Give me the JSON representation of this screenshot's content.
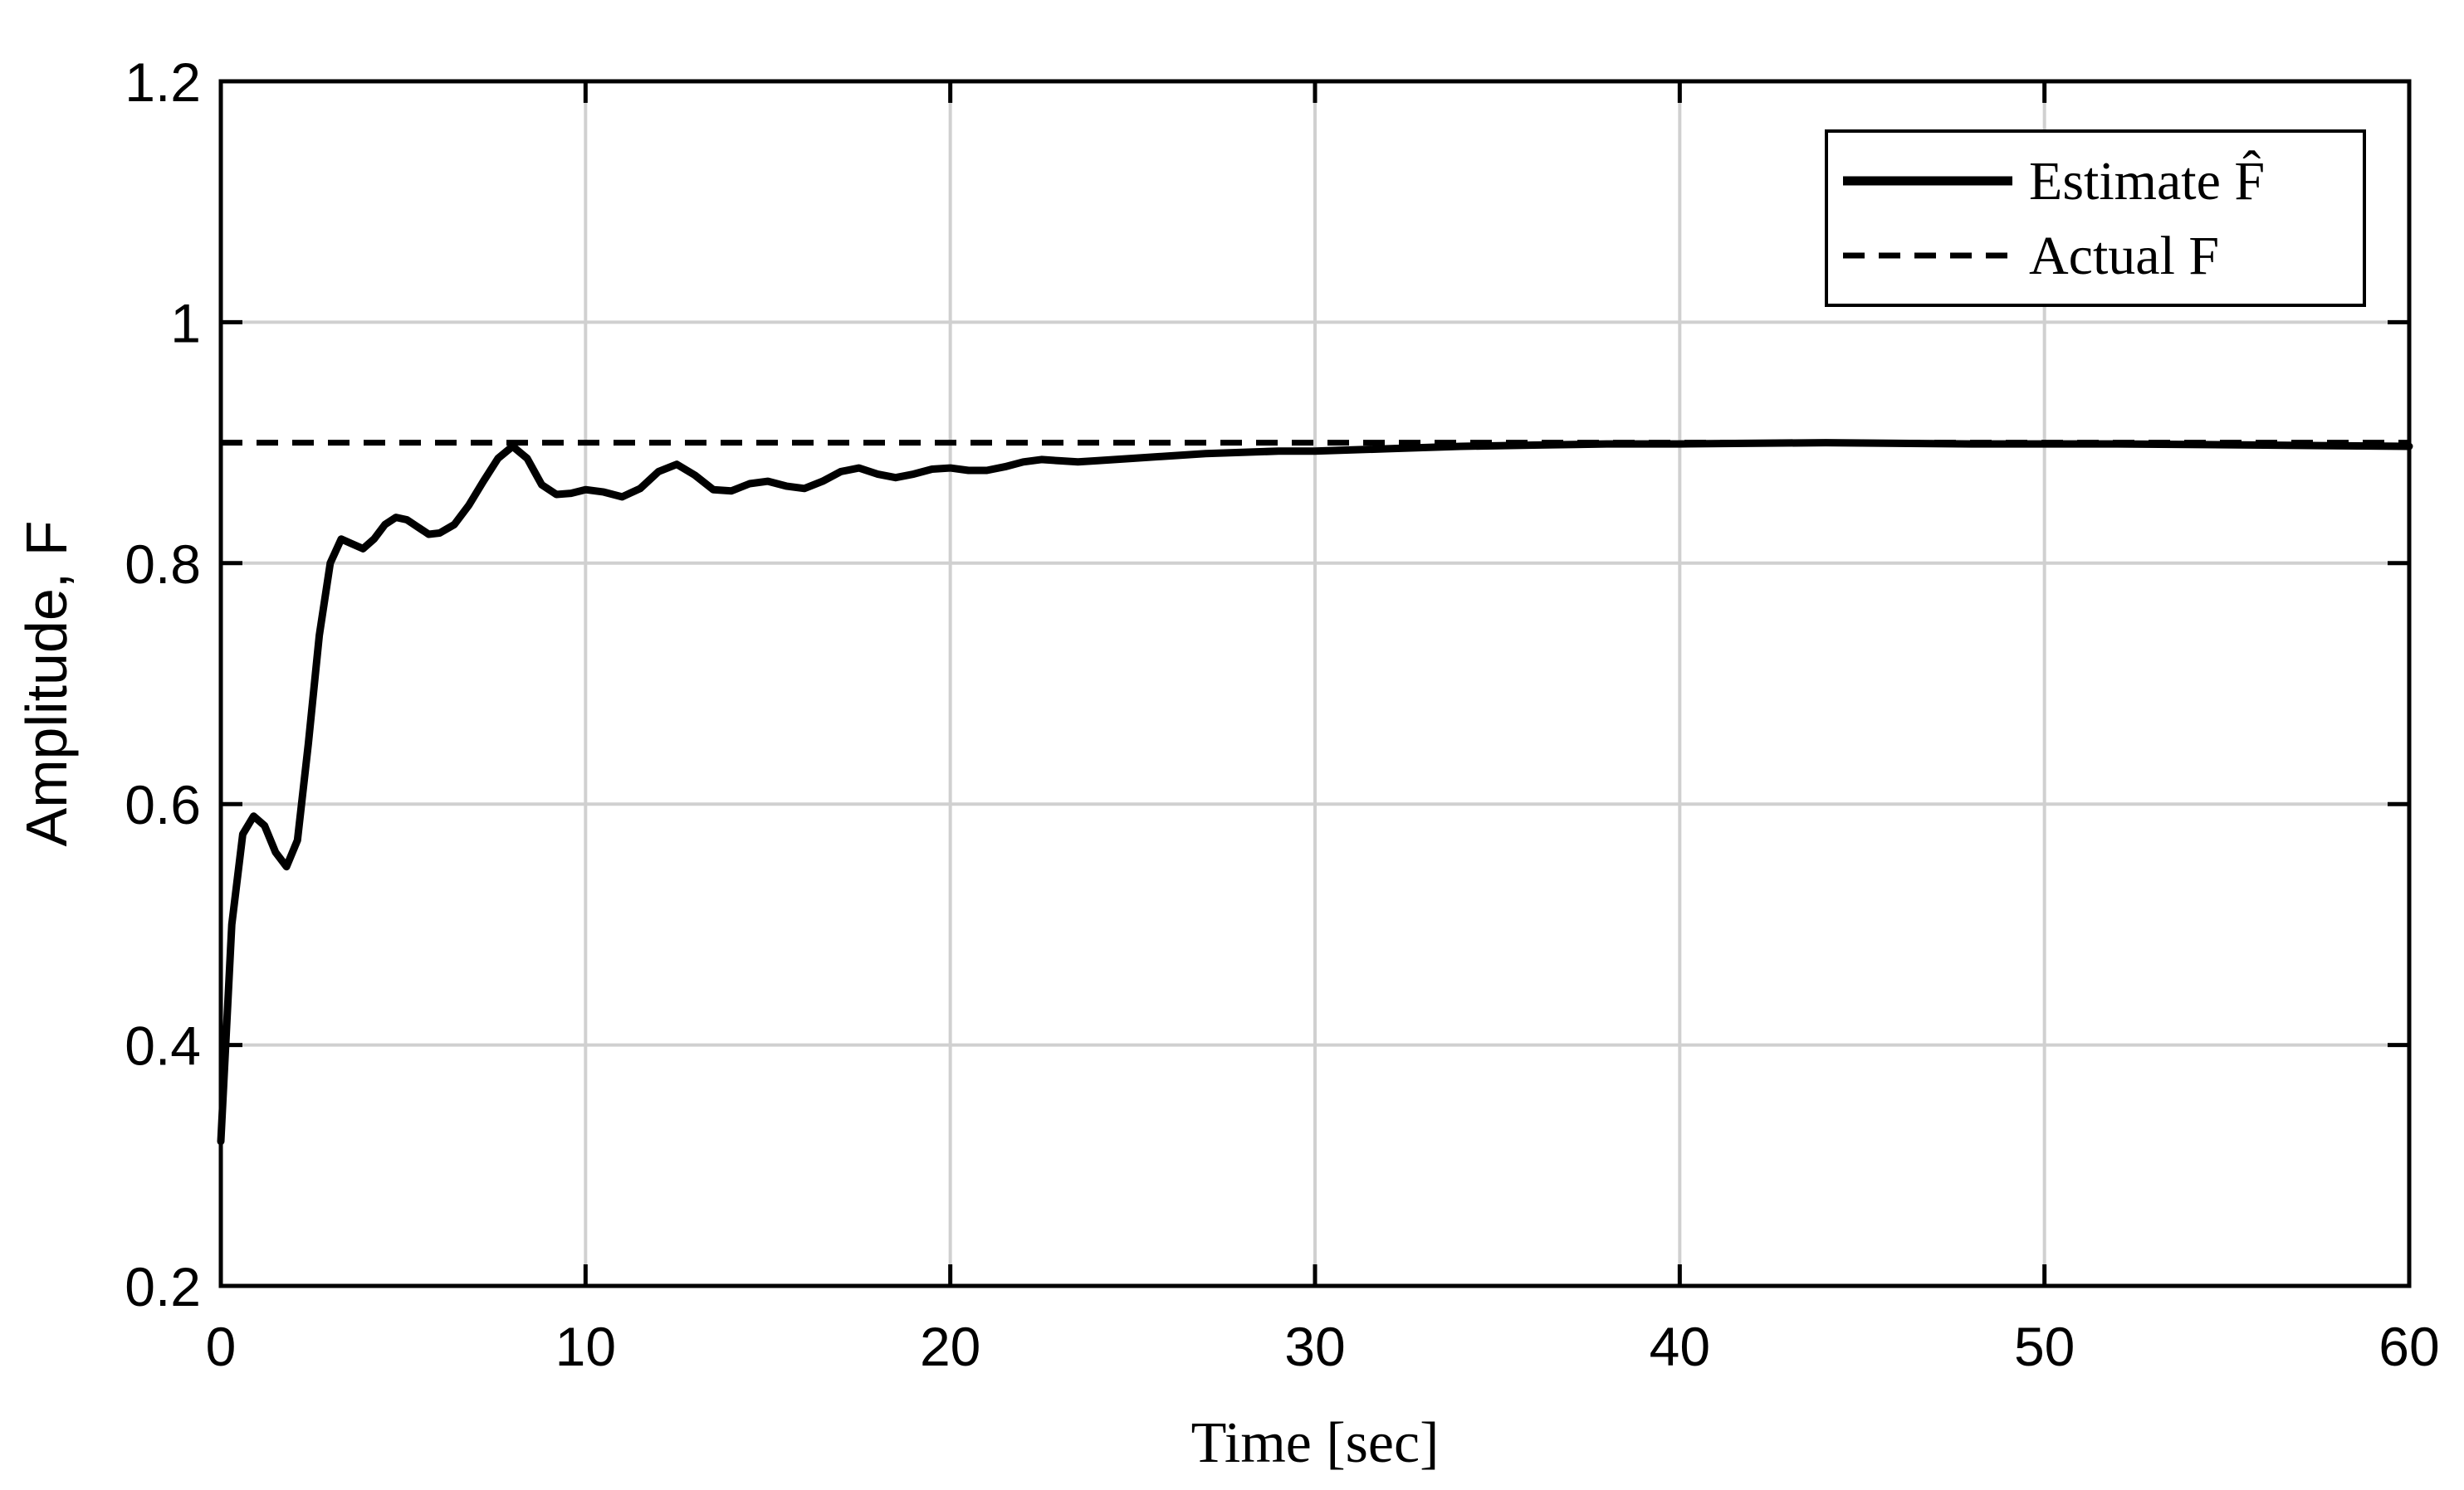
{
  "chart_data": {
    "type": "line",
    "xlabel": "Time [sec]",
    "ylabel": "Amplitude, F",
    "xlim": [
      0,
      60
    ],
    "ylim": [
      0.2,
      1.2
    ],
    "xticks": [
      "0",
      "10",
      "20",
      "30",
      "40",
      "50",
      "60"
    ],
    "yticks": [
      "0.2",
      "0.4",
      "0.6",
      "0.8",
      "1",
      "1.2"
    ],
    "grid": true,
    "legend_position": "top-right",
    "series": [
      {
        "name": "Estimate F̂",
        "style": "solid",
        "color": "#000000",
        "x": [
          0,
          0.3,
          0.6,
          0.9,
          1.2,
          1.5,
          1.8,
          2.1,
          2.4,
          2.7,
          3.0,
          3.3,
          3.6,
          3.9,
          4.2,
          4.5,
          4.8,
          5.1,
          5.4,
          5.7,
          6.0,
          6.4,
          6.8,
          7.2,
          7.6,
          8.0,
          8.4,
          8.8,
          9.2,
          9.6,
          10.0,
          10.5,
          11.0,
          11.5,
          12.0,
          12.5,
          13.0,
          13.5,
          14.0,
          14.5,
          15.0,
          15.5,
          16.0,
          16.5,
          17.0,
          17.5,
          18.0,
          18.5,
          19.0,
          19.5,
          20.0,
          20.5,
          21.0,
          21.5,
          22.0,
          22.5,
          23.0,
          23.5,
          24.0,
          25.0,
          26.0,
          27.0,
          28.0,
          29.0,
          30.0,
          32.0,
          34.0,
          36.0,
          38.0,
          40.0,
          44.0,
          48.0,
          52.0,
          56.0,
          60.0
        ],
        "y": [
          0.32,
          0.5,
          0.575,
          0.59,
          0.582,
          0.56,
          0.548,
          0.57,
          0.65,
          0.74,
          0.8,
          0.82,
          0.816,
          0.812,
          0.82,
          0.832,
          0.838,
          0.836,
          0.83,
          0.824,
          0.825,
          0.832,
          0.848,
          0.868,
          0.887,
          0.897,
          0.887,
          0.865,
          0.857,
          0.858,
          0.861,
          0.859,
          0.855,
          0.862,
          0.876,
          0.882,
          0.873,
          0.861,
          0.86,
          0.866,
          0.868,
          0.864,
          0.862,
          0.868,
          0.876,
          0.879,
          0.874,
          0.871,
          0.874,
          0.878,
          0.879,
          0.877,
          0.877,
          0.88,
          0.884,
          0.886,
          0.885,
          0.884,
          0.885,
          0.887,
          0.889,
          0.891,
          0.892,
          0.893,
          0.893,
          0.895,
          0.897,
          0.898,
          0.899,
          0.899,
          0.9,
          0.899,
          0.899,
          0.898,
          0.897
        ]
      },
      {
        "name": "Actual F",
        "style": "dashed",
        "color": "#000000",
        "x": [
          0,
          60
        ],
        "y": [
          0.9,
          0.9
        ]
      }
    ]
  }
}
